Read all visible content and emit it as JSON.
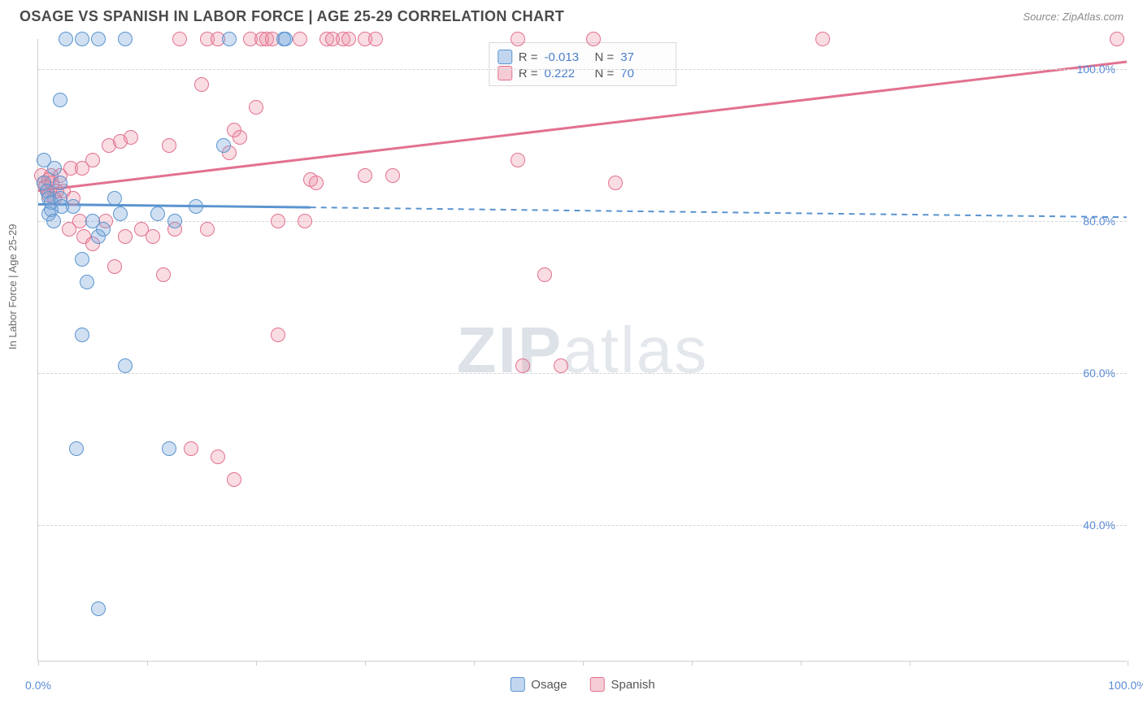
{
  "header": {
    "title": "OSAGE VS SPANISH IN LABOR FORCE | AGE 25-29 CORRELATION CHART",
    "source": "Source: ZipAtlas.com"
  },
  "axes": {
    "ylabel": "In Labor Force | Age 25-29",
    "yticks": [
      40.0,
      60.0,
      80.0,
      100.0
    ],
    "ytick_labels": [
      "40.0%",
      "60.0%",
      "80.0%",
      "100.0%"
    ],
    "xticks": [
      0.0,
      10.0,
      20.0,
      30.0,
      40.0,
      50.0,
      60.0,
      70.0,
      80.0,
      100.0
    ],
    "xtick_labels_shown": {
      "0.0": "0.0%",
      "100.0": "100.0%"
    },
    "xlim": [
      0.0,
      100.0
    ],
    "ylim": [
      22.0,
      104.0
    ]
  },
  "style": {
    "background_color": "#ffffff",
    "grid_color": "#d6d6d6",
    "axis_color": "#cfcfcf",
    "tick_label_color": "#5b8bd4",
    "title_color": "#4a4a4a",
    "title_fontsize": 18,
    "label_fontsize": 13,
    "point_radius": 9,
    "watermark_text_a": "ZIP",
    "watermark_text_b": "atlas"
  },
  "series": {
    "osage": {
      "label": "Osage",
      "color_fill": "rgba(119,167,219,0.35)",
      "color_stroke": "#5a94cf",
      "stats": {
        "R": "-0.013",
        "N": "37"
      },
      "trend": {
        "x1": 0.0,
        "y1": 82.2,
        "x2": 25.0,
        "y2": 81.8,
        "x2_dash": 100.0,
        "y2_dash": 80.5,
        "solid_width": 3,
        "dash_pattern": "7,6"
      },
      "points": [
        [
          0.5,
          85
        ],
        [
          0.8,
          84
        ],
        [
          1.0,
          83
        ],
        [
          1.2,
          82.5
        ],
        [
          1.2,
          81.5
        ],
        [
          1.0,
          81
        ],
        [
          1.4,
          80
        ],
        [
          2.0,
          85
        ],
        [
          2.0,
          83
        ],
        [
          2.2,
          82
        ],
        [
          2.5,
          104
        ],
        [
          4.0,
          104
        ],
        [
          5.5,
          104
        ],
        [
          8.0,
          104
        ],
        [
          2.0,
          96
        ],
        [
          3.2,
          82
        ],
        [
          4.0,
          75
        ],
        [
          4.5,
          72
        ],
        [
          5.0,
          80
        ],
        [
          5.5,
          78
        ],
        [
          6.0,
          79
        ],
        [
          7.0,
          83
        ],
        [
          7.5,
          81
        ],
        [
          11.0,
          81
        ],
        [
          12.5,
          80
        ],
        [
          14.5,
          82
        ],
        [
          8.0,
          61
        ],
        [
          12.0,
          50
        ],
        [
          3.5,
          50
        ],
        [
          4.0,
          65
        ],
        [
          5.5,
          29
        ],
        [
          0.5,
          88
        ],
        [
          1.5,
          87
        ],
        [
          17.0,
          90
        ],
        [
          17.5,
          104
        ],
        [
          22.5,
          104
        ],
        [
          22.7,
          104
        ]
      ]
    },
    "spanish": {
      "label": "Spanish",
      "color_fill": "rgba(235,142,163,0.30)",
      "color_stroke": "#e2718f",
      "stats": {
        "R": "0.222",
        "N": "70"
      },
      "trend": {
        "x1": 0.0,
        "y1": 84.0,
        "x2": 100.0,
        "y2": 101.0,
        "solid_width": 3
      },
      "points": [
        [
          0.3,
          86
        ],
        [
          0.5,
          85
        ],
        [
          0.7,
          84.5
        ],
        [
          0.8,
          84
        ],
        [
          1.0,
          83.5
        ],
        [
          1.0,
          85.5
        ],
        [
          1.2,
          86
        ],
        [
          1.3,
          85
        ],
        [
          1.5,
          83
        ],
        [
          1.7,
          84
        ],
        [
          2.0,
          86
        ],
        [
          2.3,
          84
        ],
        [
          3.0,
          87
        ],
        [
          3.2,
          83
        ],
        [
          4.0,
          87
        ],
        [
          5.0,
          88
        ],
        [
          6.5,
          90
        ],
        [
          7.5,
          90.5
        ],
        [
          8.5,
          91
        ],
        [
          9.5,
          79
        ],
        [
          10.5,
          78
        ],
        [
          12.0,
          90
        ],
        [
          13.0,
          104
        ],
        [
          15.0,
          98
        ],
        [
          15.5,
          104
        ],
        [
          16.5,
          104
        ],
        [
          18.0,
          92
        ],
        [
          18.5,
          91
        ],
        [
          19.5,
          104
        ],
        [
          20.0,
          95
        ],
        [
          20.5,
          104
        ],
        [
          21.0,
          104
        ],
        [
          21.5,
          104
        ],
        [
          24.0,
          104
        ],
        [
          24.5,
          80
        ],
        [
          25.0,
          85.5
        ],
        [
          25.5,
          85
        ],
        [
          26.5,
          104
        ],
        [
          27.0,
          104
        ],
        [
          28.0,
          104
        ],
        [
          28.5,
          104
        ],
        [
          30.0,
          86
        ],
        [
          30.0,
          104
        ],
        [
          31.0,
          104
        ],
        [
          32.5,
          86
        ],
        [
          44.0,
          88
        ],
        [
          44.0,
          104
        ],
        [
          46.5,
          73
        ],
        [
          48.0,
          61
        ],
        [
          51.0,
          104
        ],
        [
          53.0,
          85
        ],
        [
          72.0,
          104
        ],
        [
          99.0,
          104
        ],
        [
          14.0,
          50
        ],
        [
          16.5,
          49
        ],
        [
          18.0,
          46
        ],
        [
          22.0,
          65
        ],
        [
          22.0,
          80
        ],
        [
          12.5,
          79
        ],
        [
          8.0,
          78
        ],
        [
          7.0,
          74
        ],
        [
          11.5,
          73
        ],
        [
          44.5,
          61
        ],
        [
          15.5,
          79
        ],
        [
          17.5,
          89
        ],
        [
          3.8,
          80
        ],
        [
          4.2,
          78
        ],
        [
          5.0,
          77
        ],
        [
          6.2,
          80
        ],
        [
          2.8,
          79
        ]
      ]
    }
  },
  "legend_stats": {
    "prefix_R": "R =",
    "prefix_N": "N ="
  },
  "bottom_legend": {
    "osage": "Osage",
    "spanish": "Spanish"
  }
}
